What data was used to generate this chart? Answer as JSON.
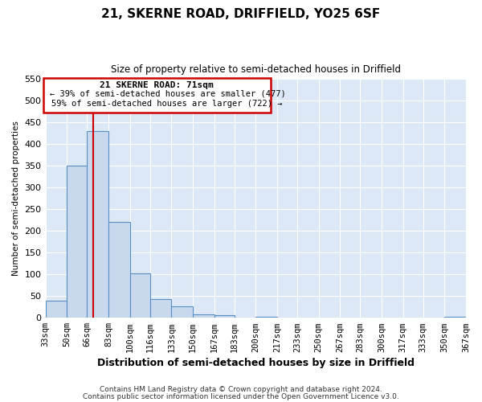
{
  "title": "21, SKERNE ROAD, DRIFFIELD, YO25 6SF",
  "subtitle": "Size of property relative to semi-detached houses in Driffield",
  "xlabel": "Distribution of semi-detached houses by size in Driffield",
  "ylabel": "Number of semi-detached properties",
  "bar_color": "#c9d9ed",
  "bar_edge_color": "#5a8fc3",
  "background_color": "#dce8f5",
  "grid_color": "#ffffff",
  "figure_bg": "#ffffff",
  "annotation_box_edge": "#cc0000",
  "property_line_color": "#cc0000",
  "annotation_title": "21 SKERNE ROAD: 71sqm",
  "annotation_line1": "← 39% of semi-detached houses are smaller (477)",
  "annotation_line2": "59% of semi-detached houses are larger (722) →",
  "property_value": 71,
  "bin_edges": [
    33,
    50,
    66,
    83,
    100,
    116,
    133,
    150,
    167,
    183,
    200,
    217,
    233,
    250,
    267,
    283,
    300,
    317,
    333,
    350,
    367
  ],
  "bin_labels": [
    "33sqm",
    "50sqm",
    "66sqm",
    "83sqm",
    "100sqm",
    "116sqm",
    "133sqm",
    "150sqm",
    "167sqm",
    "183sqm",
    "200sqm",
    "217sqm",
    "233sqm",
    "250sqm",
    "267sqm",
    "283sqm",
    "300sqm",
    "317sqm",
    "333sqm",
    "350sqm",
    "367sqm"
  ],
  "counts": [
    40,
    350,
    430,
    220,
    103,
    43,
    26,
    8,
    5,
    0,
    3,
    0,
    0,
    0,
    0,
    0,
    0,
    0,
    0,
    2
  ],
  "ylim": [
    0,
    550
  ],
  "yticks": [
    0,
    50,
    100,
    150,
    200,
    250,
    300,
    350,
    400,
    450,
    500,
    550
  ],
  "footnote1": "Contains HM Land Registry data © Crown copyright and database right 2024.",
  "footnote2": "Contains public sector information licensed under the Open Government Licence v3.0."
}
